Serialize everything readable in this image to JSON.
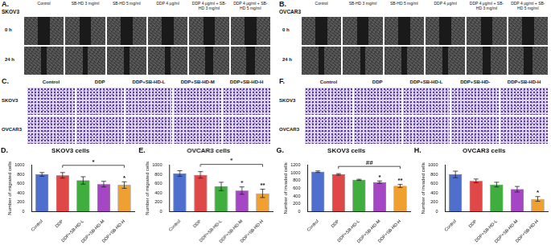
{
  "panels": {
    "A": {
      "label": "A.",
      "cell_line": "SKOV3",
      "columns": [
        "Control",
        "SB-HD 3 mg/ml",
        "SB-HD 5 mg/ml",
        "DDP 4 μg/ml",
        "DDP 4 μg/ml + SB-HD 3 mg/ml",
        "DDP 4 μg/ml + SB-HD 5 mg/ml"
      ],
      "rows": [
        "0 h",
        "24 h"
      ]
    },
    "B": {
      "label": "B.",
      "cell_line": "OVCAR3",
      "columns": [
        "Control",
        "SB-HD 3 mg/ml",
        "SB-HD 5 mg/ml",
        "DDP 4 μg/ml",
        "DDP 4 μg/ml + SB-HD 3 mg/ml",
        "DDP 4 μg/ml + SB-HD 5 mg/ml"
      ],
      "rows": [
        "0 h",
        "24 h"
      ]
    },
    "C": {
      "label": "C.",
      "columns": [
        "Control",
        "DDP",
        "DDP+SB-HD-L",
        "DDP+SB-HD-M",
        "DDP+SB-HD-H"
      ],
      "rows": [
        "SKOV3",
        "OVCAR3"
      ]
    },
    "F": {
      "label": "F.",
      "columns": [
        "Control",
        "DDP",
        "DDP+SB-HD-L",
        "DDP+SB-HD-",
        "DDP+SB-HD-H"
      ],
      "rows": [
        "SKOV3",
        "OVCAR3"
      ]
    }
  },
  "chart_data": [
    {
      "panel": "D.",
      "type": "bar",
      "title": "SKOV3 cells",
      "y_label": "Number of migrated cells",
      "categories": [
        "Control",
        "DDP",
        "DDP+SB-HD-L",
        "DDP+SB-HD-M",
        "DDP+SB-HD-H"
      ],
      "values": [
        800,
        780,
        670,
        590,
        570
      ],
      "errors": [
        40,
        60,
        80,
        60,
        70
      ],
      "colors": [
        "#4f6fcf",
        "#e04848",
        "#3fae3f",
        "#a546c4",
        "#f0a030"
      ],
      "ylim": [
        0,
        1000
      ],
      "yticks": [
        0,
        200,
        400,
        600,
        800,
        1000
      ],
      "grid": false,
      "marks": [
        {
          "category": "DDP+SB-HD-H",
          "text": "*"
        }
      ],
      "brackets": [
        {
          "from": "DDP",
          "to": "DDP+SB-HD-H",
          "text": "*"
        }
      ]
    },
    {
      "panel": "E.",
      "type": "bar",
      "title": "OVCAR3 cells",
      "y_label": "Number of migrated cells",
      "categories": [
        "Control",
        "DDP",
        "DDP+SB-HD-L",
        "DDP+SB-HD-M",
        "DDP+SB-HD-H"
      ],
      "values": [
        820,
        790,
        540,
        450,
        390
      ],
      "errors": [
        60,
        70,
        90,
        80,
        90
      ],
      "colors": [
        "#4f6fcf",
        "#e04848",
        "#3fae3f",
        "#a546c4",
        "#f0a030"
      ],
      "ylim": [
        0,
        1000
      ],
      "yticks": [
        0,
        200,
        400,
        600,
        800,
        1000
      ],
      "grid": false,
      "marks": [
        {
          "category": "DDP+SB-HD-M",
          "text": "*"
        },
        {
          "category": "DDP+SB-HD-H",
          "text": "**"
        }
      ],
      "brackets": [
        {
          "from": "DDP",
          "to": "DDP+SB-HD-H",
          "text": "*"
        }
      ]
    },
    {
      "panel": "G.",
      "type": "bar",
      "title": "SKOV3 cells",
      "y_label": "Number of invaded cells",
      "categories": [
        "Control",
        "DDP",
        "DDP+SB-HD-L",
        "DDP+SB-HD-M",
        "DDP+SB-HD-H"
      ],
      "values": [
        1030,
        960,
        820,
        760,
        660
      ],
      "errors": [
        20,
        20,
        15,
        30,
        40
      ],
      "colors": [
        "#4f6fcf",
        "#e04848",
        "#3fae3f",
        "#a546c4",
        "#f0a030"
      ],
      "ylim": [
        0,
        1200
      ],
      "yticks": [
        0,
        200,
        400,
        600,
        800,
        1000,
        1200
      ],
      "grid": false,
      "marks": [
        {
          "category": "DDP+SB-HD-M",
          "text": "*"
        },
        {
          "category": "DDP+SB-HD-H",
          "text": "**"
        }
      ],
      "brackets": [
        {
          "from": "DDP",
          "to": "DDP+SB-HD-H",
          "text": "##"
        }
      ]
    },
    {
      "panel": "H.",
      "type": "bar",
      "title": "OVCAR3 cells",
      "y_label": "Number of invaded cells",
      "categories": [
        "Control",
        "DDP",
        "DDP+SB-HD-L",
        "DDP+SB-HD-M",
        "DDP+SB-HD-H"
      ],
      "values": [
        800,
        660,
        580,
        480,
        270
      ],
      "errors": [
        70,
        40,
        50,
        60,
        50
      ],
      "colors": [
        "#4f6fcf",
        "#e04848",
        "#3fae3f",
        "#a546c4",
        "#f0a030"
      ],
      "ylim": [
        0,
        1000
      ],
      "yticks": [
        0,
        200,
        400,
        600,
        800,
        1000
      ],
      "grid": false,
      "marks": [
        {
          "category": "DDP+SB-HD-H",
          "text": "*"
        }
      ],
      "brackets": []
    }
  ]
}
